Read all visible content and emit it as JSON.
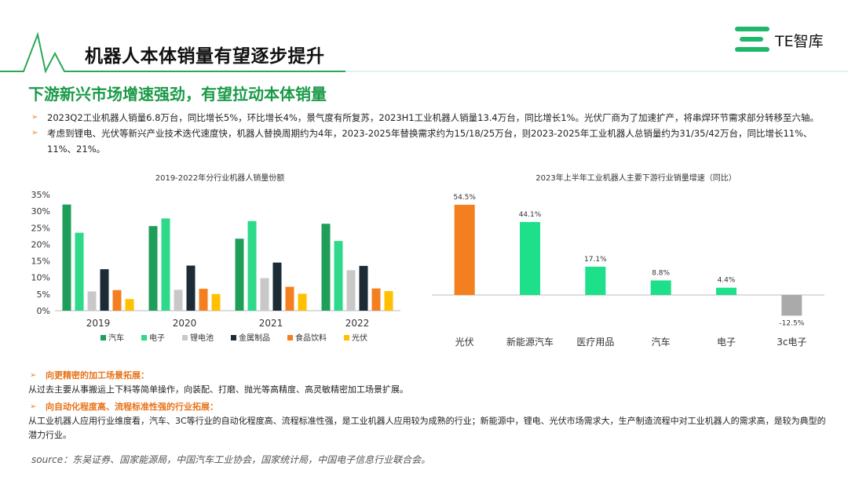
{
  "header": {
    "title": "机器人本体销量有望逐步提升",
    "logo_text": "TE智库"
  },
  "subtitle": "下游新兴市场增速强劲，有望拉动本体销量",
  "bullets": [
    "2023Q2工业机器人销量6.8万台，同比增长5%，环比增长4%，景气度有所复苏，2023H1工业机器人销量13.4万台，同比增长1%。光伏厂商为了加速扩产，将串焊环节需求部分转移至六轴。",
    "考虑到锂电、光伏等新兴产业技术迭代速度快，机器人替换周期约为4年，2023-2025年替换需求约为15/18/25万台，则2023-2025年工业机器人总销量约为31/35/42万台，同比增长11%、11%、21%。"
  ],
  "sections": [
    {
      "heading": "向更精密的加工场景拓展：",
      "body": "从过去主要从事搬运上下料等简单操作，向装配、打磨、抛光等高精度、高灵敏精密加工场景扩展。"
    },
    {
      "heading": "向自动化程度高、流程标准性强的行业拓展：",
      "body": "从工业机器人应用行业维度看，汽车、3C等行业的自动化程度高、流程标准性强，是工业机器人应用较为成熟的行业；新能源中，锂电、光伏市场需求大，生产制造流程中对工业机器人的需求高，是较为典型的潜力行业。"
    }
  ],
  "source": "source：东吴证券、国家能源局，中国汽车工业协会，国家统计局，中国电子信息行业联合会。",
  "colors": {
    "green": "#1a9a48",
    "orange": "#f47f20",
    "teal": "#1fe08a"
  },
  "chart_data": [
    {
      "type": "bar",
      "title": "2019-2022年分行业机器人销量份额",
      "categories": [
        "2019",
        "2020",
        "2021",
        "2022"
      ],
      "ylim": [
        0,
        35
      ],
      "yticks": [
        "0%",
        "5%",
        "10%",
        "15%",
        "20%",
        "25%",
        "30%",
        "35%"
      ],
      "legend_position": "bottom",
      "series": [
        {
          "name": "汽车",
          "color": "#1f9e5a",
          "values": [
            32.0,
            25.5,
            21.7,
            26.2
          ]
        },
        {
          "name": "电子",
          "color": "#2ed98a",
          "values": [
            23.5,
            27.8,
            27.0,
            21.0
          ]
        },
        {
          "name": "锂电池",
          "color": "#c8c8c8",
          "values": [
            5.8,
            6.3,
            9.8,
            12.2
          ]
        },
        {
          "name": "金属制品",
          "color": "#1c2b36",
          "values": [
            12.5,
            13.6,
            14.5,
            13.5
          ]
        },
        {
          "name": "食品饮料",
          "color": "#f47f20",
          "values": [
            6.2,
            6.6,
            7.2,
            6.7
          ]
        },
        {
          "name": "光伏",
          "color": "#ffc000",
          "values": [
            3.5,
            5.0,
            5.1,
            5.9
          ]
        }
      ]
    },
    {
      "type": "bar",
      "title": "2023年上半年工业机器人主要下游行业销量增速（同比）",
      "categories": [
        "光伏",
        "新能源汽车",
        "医疗用品",
        "汽车",
        "电子",
        "3c电子"
      ],
      "values": [
        54.5,
        44.1,
        17.1,
        8.8,
        4.4,
        -12.5
      ],
      "labels": [
        "54.5%",
        "44.1%",
        "17.1%",
        "8.8%",
        "4.4%",
        "-12.5%"
      ],
      "colors": [
        "#f47f20",
        "#1fe08a",
        "#1fe08a",
        "#1fe08a",
        "#1fe08a",
        "#aaaaaa"
      ]
    }
  ]
}
